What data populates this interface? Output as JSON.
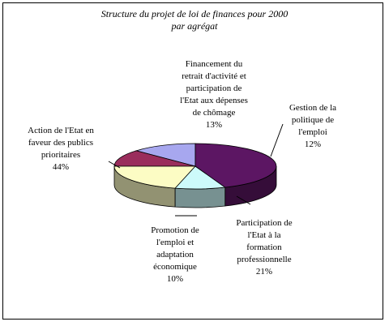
{
  "chart_data": {
    "type": "pie",
    "title": "Structure du projet de loi de finances pour 2000",
    "subtitle": "par agrégat",
    "slices": [
      {
        "label": "Financement du retrait d'activité et participation de l'Etat aux dépenses de chômage",
        "lines": [
          "Financement du",
          "retrait d'activité et",
          "participation de",
          "l'Etat aux dépenses",
          "de chômage"
        ],
        "percent_label": "13%",
        "value": 13,
        "color": "#a7a7ef"
      },
      {
        "label": "Gestion de la politique de l'emploi",
        "lines": [
          "Gestion de la",
          "politique de",
          "l'emploi"
        ],
        "percent_label": "12%",
        "value": 12,
        "color": "#9a2d5c"
      },
      {
        "label": "Participation de l'Etat à la formation professionnelle",
        "lines": [
          "Participation de",
          "l'Etat à la",
          "formation",
          "professionnelle"
        ],
        "percent_label": "21%",
        "value": 21,
        "color": "#fcfcc4"
      },
      {
        "label": "Promotion de l'emploi et adaptation économique",
        "lines": [
          "Promotion de",
          "l'emploi et",
          "adaptation",
          "économique"
        ],
        "percent_label": "10%",
        "value": 10,
        "color": "#cdfafa"
      },
      {
        "label": "Action de l'Etat en faveur des publics prioritaires",
        "lines": [
          "Action de l'Etat en",
          "faveur des publics",
          "prioritaires"
        ],
        "percent_label": "44%",
        "value": 44,
        "color": "#5c1663"
      }
    ]
  }
}
